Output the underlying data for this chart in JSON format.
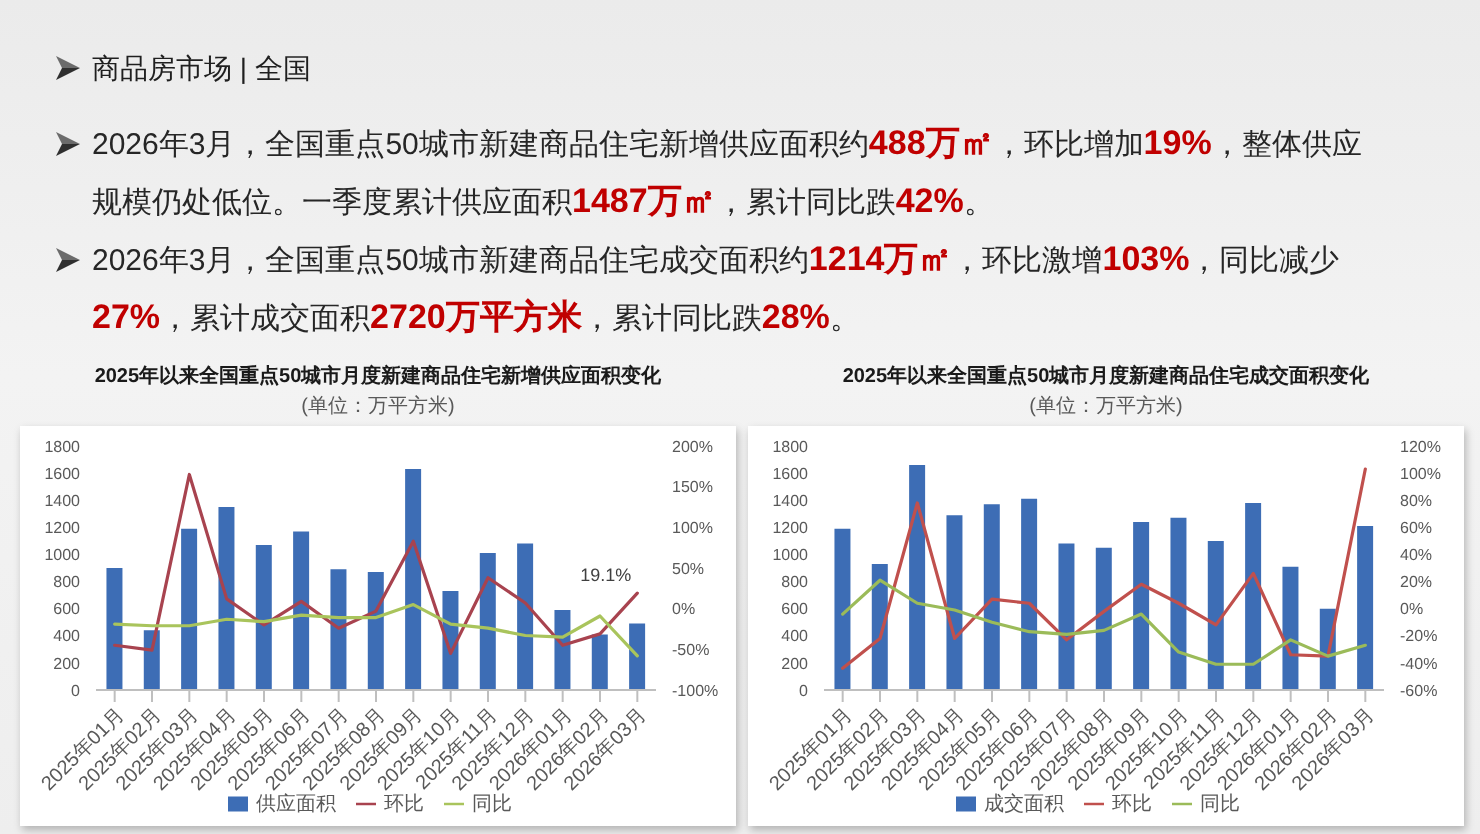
{
  "chart_data": [
    {
      "type": "other",
      "title": "商品房市场 | 全国",
      "annotations": [
        "2026年3月，全国重点50城市新建商品住宅新增供应面积约488万㎡，环比增加19%，整体供应规模仍处低位。一季度累计供应面积1487万㎡，累计同比跌42%。",
        "2026年3月，全国重点50城市新建商品住宅成交面积约1214万㎡，环比激增103%，同比减少27%，累计成交面积2720万平方米，累计同比跌28%。"
      ]
    },
    {
      "type": "bar",
      "title": "2025年以来全国重点50城市月度新建商品住宅新增供应面积变化",
      "subtitle": "(单位：万平方米)",
      "categories": [
        "2025年01月",
        "2025年02月",
        "2025年03月",
        "2025年04月",
        "2025年05月",
        "2025年06月",
        "2025年07月",
        "2025年08月",
        "2025年09月",
        "2025年10月",
        "2025年11月",
        "2025年12月",
        "2026年01月",
        "2026年02月",
        "2026年03月"
      ],
      "series": [
        {
          "name": "供应面积",
          "color": "#3d6db5",
          "values": [
            900,
            440,
            1190,
            1350,
            1070,
            1170,
            890,
            870,
            1630,
            730,
            1010,
            1080,
            590,
            410,
            490
          ]
        },
        {
          "name": "环比",
          "type": "line",
          "axis": "y2",
          "color": "#a8434f",
          "values": [
            -45,
            -51,
            165,
            12,
            -20,
            9,
            -24,
            -3,
            83,
            -55,
            38,
            7,
            -45,
            -31,
            19.1
          ],
          "value_labels": [
            null,
            null,
            null,
            null,
            null,
            null,
            null,
            null,
            null,
            null,
            null,
            null,
            null,
            null,
            "19.1%"
          ]
        },
        {
          "name": "同比",
          "type": "line",
          "axis": "y2",
          "color": "#a9c45c",
          "values": [
            -19,
            -21,
            -21,
            -13,
            -16,
            -8,
            -11,
            -11,
            5,
            -19,
            -24,
            -33,
            -35,
            -9,
            -58
          ]
        }
      ],
      "ylim": [
        0,
        1800
      ],
      "yticks": [
        0,
        200,
        400,
        600,
        800,
        1000,
        1200,
        1400,
        1600,
        1800
      ],
      "y2lim": [
        -100,
        200
      ],
      "y2ticks": [
        {
          "value": -100,
          "label": "-100%"
        },
        {
          "value": -50,
          "label": "-50%"
        },
        {
          "value": 0,
          "label": "0%"
        },
        {
          "value": 50,
          "label": "50%"
        },
        {
          "value": 100,
          "label": "100%"
        },
        {
          "value": 150,
          "label": "150%"
        },
        {
          "value": 200,
          "label": "200%"
        }
      ],
      "legend": "bottom",
      "marker": "none"
    },
    {
      "type": "bar",
      "title": "2025年以来全国重点50城市月度新建商品住宅成交面积变化",
      "subtitle": "(单位：万平方米)",
      "categories": [
        "2025年01月",
        "2025年02月",
        "2025年03月",
        "2025年04月",
        "2025年05月",
        "2025年06月",
        "2025年07月",
        "2025年08月",
        "2025年09月",
        "2025年10月",
        "2025年11月",
        "2025年12月",
        "2026年01月",
        "2026年02月",
        "2026年03月"
      ],
      "series": [
        {
          "name": "成交面积",
          "color": "#3d6db5",
          "values": [
            1190,
            930,
            1660,
            1290,
            1370,
            1410,
            1080,
            1050,
            1240,
            1270,
            1100,
            1380,
            910,
            600,
            1210
          ]
        },
        {
          "name": "环比",
          "type": "line",
          "axis": "y2",
          "color": "#c0504d",
          "values": [
            -44,
            -22,
            78,
            -22,
            7,
            4,
            -23,
            -2,
            18,
            4,
            -12,
            26,
            -34,
            -35,
            103
          ]
        },
        {
          "name": "同比",
          "type": "line",
          "axis": "y2",
          "color": "#9bbb59",
          "values": [
            -4,
            21,
            4,
            -1,
            -10,
            -17,
            -19,
            -16,
            -4,
            -32,
            -41,
            -41,
            -23,
            -35,
            -27
          ]
        }
      ],
      "ylim": [
        0,
        1800
      ],
      "yticks": [
        0,
        200,
        400,
        600,
        800,
        1000,
        1200,
        1400,
        1600,
        1800
      ],
      "y2lim": [
        -60,
        120
      ],
      "y2ticks": [
        {
          "value": -60,
          "label": "-60%"
        },
        {
          "value": -40,
          "label": "-40%"
        },
        {
          "value": -20,
          "label": "-20%"
        },
        {
          "value": 0,
          "label": "0%"
        },
        {
          "value": 20,
          "label": "20%"
        },
        {
          "value": 40,
          "label": "40%"
        },
        {
          "value": 60,
          "label": "60%"
        },
        {
          "value": 80,
          "label": "80%"
        },
        {
          "value": 100,
          "label": "100%"
        },
        {
          "value": 120,
          "label": "120%"
        }
      ],
      "legend": "bottom",
      "marker": "none"
    }
  ]
}
